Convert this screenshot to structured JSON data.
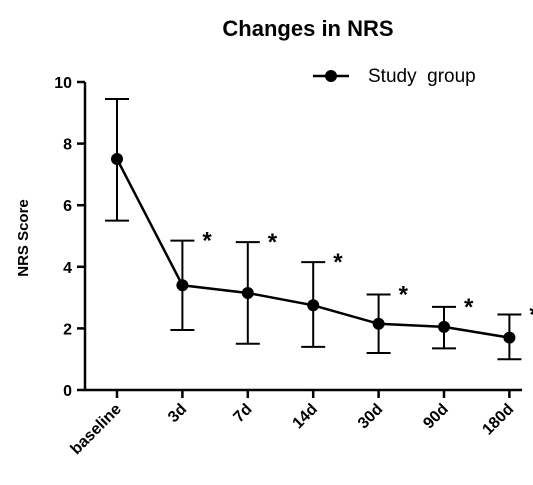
{
  "chart_data": {
    "type": "line",
    "title": "Changes in NRS",
    "xlabel": "",
    "ylabel": "NRS Score",
    "ylim": [
      0,
      10
    ],
    "yticks": [
      0,
      2,
      4,
      6,
      8,
      10
    ],
    "categories": [
      "baseline",
      "3d",
      "7d",
      "14d",
      "30d",
      "90d",
      "180d"
    ],
    "series": [
      {
        "name": "Study  group",
        "values": [
          7.5,
          3.4,
          3.15,
          2.75,
          2.15,
          2.05,
          1.7
        ],
        "error_upper": [
          9.45,
          4.85,
          4.8,
          4.15,
          3.1,
          2.7,
          2.45
        ],
        "error_lower": [
          5.5,
          1.95,
          1.5,
          1.4,
          1.2,
          1.35,
          1.0
        ]
      }
    ],
    "annotations": [
      "",
      "*",
      "*",
      "*",
      "*",
      "*",
      "*"
    ],
    "legend": "top-right",
    "grid": false,
    "marker_color": "#000000"
  }
}
